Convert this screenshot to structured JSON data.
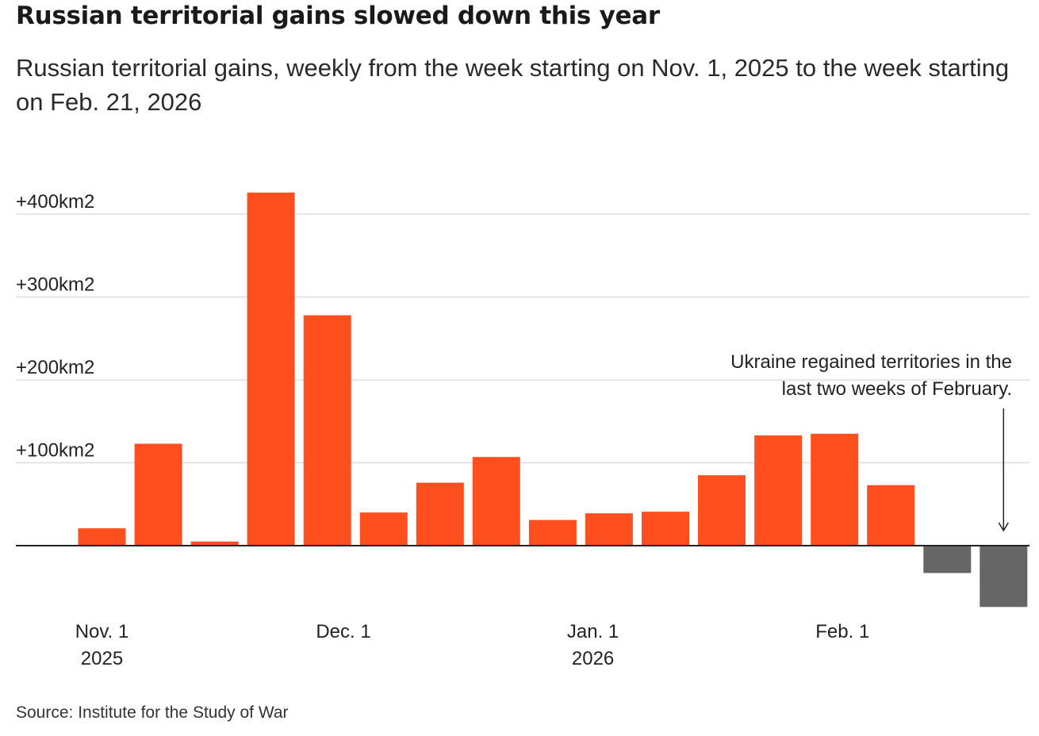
{
  "header": {
    "title": "Russian territorial gains slowed down this year",
    "subtitle": "Russian territorial gains, weekly from the week starting on Nov. 1, 2025 to the week starting on Feb. 21, 2026"
  },
  "footer": {
    "source": "Source: Institute for the Study of War"
  },
  "chart_data": {
    "type": "bar",
    "title": "Russian territorial gains slowed down this year",
    "subtitle": "Russian territorial gains, weekly from the week starting on Nov. 1, 2025 to the week starting on Feb. 21, 2026",
    "xlabel": "",
    "ylabel": "",
    "units": "km2",
    "ylim": [
      -75,
      430
    ],
    "grid": true,
    "categories": [
      "2025-11-01",
      "2025-11-08",
      "2025-11-15",
      "2025-11-22",
      "2025-11-29",
      "2025-12-06",
      "2025-12-13",
      "2025-12-20",
      "2025-12-27",
      "2026-01-03",
      "2026-01-10",
      "2026-01-17",
      "2026-01-24",
      "2026-01-31",
      "2026-02-07",
      "2026-02-14",
      "2026-02-21"
    ],
    "values": [
      21,
      123,
      5,
      426,
      278,
      40,
      76,
      107,
      31,
      39,
      41,
      85,
      133,
      135,
      73,
      -33,
      -74
    ],
    "y_ticks": [
      {
        "value": 400,
        "label": "+400km2"
      },
      {
        "value": 300,
        "label": "+300km2"
      },
      {
        "value": 200,
        "label": "+200km2"
      },
      {
        "value": 100,
        "label": "+100km2"
      }
    ],
    "x_ticks": [
      {
        "date": "2025-11-01",
        "lines": [
          "Nov. 1",
          "2025"
        ]
      },
      {
        "date": "2025-12-01",
        "lines": [
          "Dec. 1"
        ]
      },
      {
        "date": "2026-01-01",
        "lines": [
          "Jan. 1",
          "2026"
        ]
      },
      {
        "date": "2026-02-01",
        "lines": [
          "Feb. 1"
        ]
      }
    ],
    "colors": {
      "positive": "#ff4f1f",
      "negative": "#666666",
      "grid": "#dddddd",
      "axis": "#222222"
    },
    "annotation": {
      "lines": [
        "Ukraine regained territories in the",
        "last two weeks of February."
      ],
      "target": "2026-02-21"
    }
  }
}
